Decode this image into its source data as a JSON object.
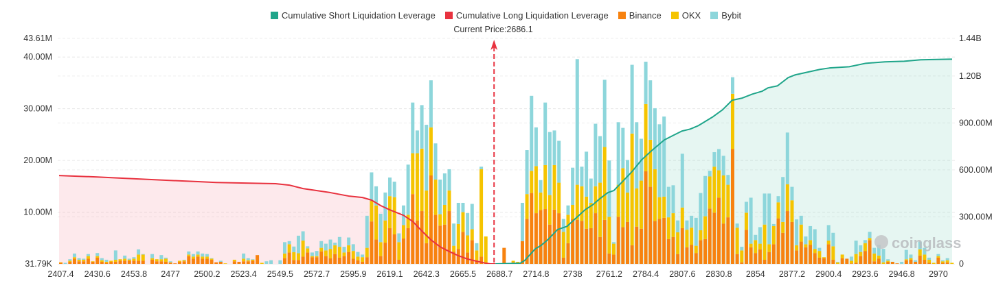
{
  "legend": [
    {
      "label": "Cumulative Short Liquidation Leverage",
      "color": "#1fa58a"
    },
    {
      "label": "Cumulative Long Liquidation Leverage",
      "color": "#e8323f"
    },
    {
      "label": "Binance",
      "color": "#f7820f"
    },
    {
      "label": "OKX",
      "color": "#f5c400"
    },
    {
      "label": "Bybit",
      "color": "#8dd6db"
    }
  ],
  "current_price_label": "Current Price:2686.1",
  "watermark": "coinglass",
  "chart_data": {
    "type": "bar",
    "stacked": true,
    "current_price": 2686.1,
    "x_tick_labels": [
      "2407.4",
      "2430.6",
      "2453.8",
      "2477",
      "2500.2",
      "2523.4",
      "2549.5",
      "2572.7",
      "2595.9",
      "2619.1",
      "2642.3",
      "2665.5",
      "2688.7",
      "2714.8",
      "2738",
      "2761.2",
      "2784.4",
      "2807.6",
      "2830.8",
      "2854",
      "2877.2",
      "2900.4",
      "2923.6",
      "2946.8",
      "2970"
    ],
    "y_left": {
      "unit": "M",
      "range": [
        0,
        43.61
      ],
      "ticks": [
        {
          "label": "43.61M",
          "value": 43.61
        },
        {
          "label": "40.00M",
          "value": 40
        },
        {
          "label": "30.00M",
          "value": 30
        },
        {
          "label": "20.00M",
          "value": 20
        },
        {
          "label": "10.00M",
          "value": 10
        },
        {
          "label": "31.79K",
          "value": 0
        }
      ]
    },
    "y_right": {
      "unit": "M",
      "range": [
        0,
        1440
      ],
      "ticks": [
        {
          "label": "1.44B",
          "value": 1440
        },
        {
          "label": "1.20B",
          "value": 1200
        },
        {
          "label": "900.00M",
          "value": 900
        },
        {
          "label": "600.00M",
          "value": 600
        },
        {
          "label": "300.00M",
          "value": 300
        },
        {
          "label": "0",
          "value": 0
        }
      ]
    },
    "grid": true,
    "legend_position": "top",
    "series": [
      {
        "name": "Binance",
        "color": "#f7820f",
        "values": [
          0.2,
          0,
          0.4,
          1.0,
          0.5,
          0.5,
          1.0,
          0.4,
          1.2,
          0.4,
          0.2,
          0.4,
          0.4,
          0.6,
          0.6,
          0.6,
          0.6,
          0.6,
          0.6,
          0,
          0.8,
          0.5,
          0.5,
          0.4,
          0.2,
          0.1,
          0.4,
          0.5,
          1.5,
          1.0,
          1.4,
          1.0,
          1.0,
          0.8,
          0.3,
          0.4,
          0,
          0,
          0.5,
          0.4,
          0.5,
          0.5,
          0.6,
          1.7,
          0,
          0,
          0,
          0,
          0,
          1.1,
          2.2,
          0.75,
          0.75,
          1.4,
          2.2,
          1.3,
          1.3,
          2.4,
          1.5,
          1.1,
          1.9,
          1.2,
          1.5,
          2.3,
          1.0,
          0.7,
          0.4,
          1.3,
          8.2,
          4.7,
          1.5,
          4.1,
          6.9,
          5.7,
          0.8,
          4.9,
          6.9,
          13.5,
          8.4,
          10.2,
          4.0,
          17.1,
          9.5,
          7.4,
          7.6,
          10.2,
          2.4,
          2.9,
          6.2,
          2.2,
          4.6,
          0.6,
          1.4,
          0,
          0,
          0,
          0,
          3.1,
          0,
          0.3,
          0.2,
          4.4,
          8.7,
          13.7,
          9.8,
          10.4,
          10.6,
          7.6,
          10.5,
          9.8,
          1.2,
          4.0,
          8.7,
          8.5,
          8.3,
          6.8,
          6.9,
          9.8,
          5.2,
          8.5,
          2.0,
          1.8,
          9.1,
          7.1,
          8.1,
          3.6,
          7.2,
          6.8,
          17.9,
          14.9,
          8.3,
          8.7,
          8.9,
          4.8,
          5.2,
          1.9,
          6.9,
          3.2,
          3.7,
          2.1,
          4.6,
          4.8,
          10.7,
          9.9,
          12.8,
          7.8,
          9.0,
          22.2,
          1.9,
          0.3,
          6.6,
          3.2,
          2.1,
          2.8,
          0.8,
          2.3,
          3.8,
          8.8,
          6.0,
          10.2,
          8.1,
          2.6,
          4.3,
          3.2,
          3.7,
          2.1,
          1.2,
          1.1,
          3.8,
          0.8,
          0,
          1.1,
          1.0,
          0.1,
          0.2,
          1.5,
          2.5,
          4.6,
          0.5,
          1.0,
          0,
          0.4,
          0.4,
          0.1,
          0,
          0.7,
          0.8,
          0.4,
          1.6,
          0.8,
          0.2,
          0,
          1.2,
          0.2,
          0.3,
          0
        ]
      },
      {
        "name": "OKX",
        "color": "#f5c400",
        "values": [
          0.1,
          0,
          0.2,
          0.3,
          0.3,
          0.3,
          0.5,
          0.1,
          0.3,
          0.3,
          0.2,
          0.2,
          0.4,
          0.3,
          0.4,
          0.2,
          0.4,
          1.2,
          1.2,
          0,
          0.3,
          0.4,
          0.4,
          0.6,
          0.1,
          0,
          0.2,
          0.2,
          0.3,
          0.4,
          0.4,
          0.4,
          0.4,
          0.2,
          0,
          0,
          0.1,
          0,
          0.3,
          0,
          0.5,
          0.2,
          0.2,
          0,
          0.2,
          0,
          0,
          0,
          0,
          0.9,
          1.6,
          1.5,
          1.3,
          3.1,
          0.8,
          0.2,
          0.2,
          0.7,
          1.1,
          1.8,
          1.7,
          2.1,
          0.7,
          1.3,
          1.5,
          0.7,
          0.9,
          1.8,
          4.0,
          6.6,
          2.7,
          4.3,
          6.2,
          7.2,
          3.4,
          2.6,
          2.6,
          7.9,
          13.0,
          12.1,
          10.2,
          9.3,
          6.8,
          2.2,
          3.8,
          4.0,
          1.1,
          4.8,
          3.8,
          3.3,
          2.1,
          2.0,
          16.9,
          5.3,
          0,
          0,
          0,
          0,
          0,
          0.3,
          0.2,
          0,
          4.8,
          4.3,
          9.1,
          3.4,
          8.5,
          5.7,
          8.6,
          5.9,
          5.0,
          5.5,
          2.7,
          6.8,
          6.7,
          6.2,
          4.9,
          5.2,
          10.5,
          14.1,
          7.1,
          2.1,
          6.2,
          11.4,
          5.7,
          21.6,
          7.4,
          9.3,
          13.0,
          9.1,
          10.0,
          4.2,
          4.1,
          4.2,
          4.6,
          4.2,
          4.0,
          3.4,
          3.3,
          1.4,
          1.9,
          4.4,
          6.2,
          8.9,
          5.3,
          9.3,
          6.3,
          10.7,
          5.1,
          2.3,
          3.3,
          0.7,
          2.5,
          1.1,
          6.8,
          1.5,
          3.5,
          3.1,
          2.1,
          5.2,
          4.2,
          1.0,
          3.3,
          0.6,
          0.9,
          0.8,
          1.3,
          0.2,
          0.7,
          2.6,
          0.3,
          0.7,
          0,
          0.5,
          1.7,
          0.8,
          1.5,
          0.4,
          1.5,
          0.6,
          0.3,
          0.2,
          0,
          0,
          0,
          0.2,
          0.3,
          0,
          1.2,
          1.0,
          0.6,
          0.2,
          0.3,
          0.3,
          0.4,
          0.2
        ]
      },
      {
        "name": "Bybit",
        "color": "#8dd6db",
        "values": [
          0,
          0.2,
          0.3,
          0.7,
          0.3,
          0.2,
          0.4,
          0,
          0.6,
          0.4,
          0.4,
          0,
          1.8,
          0,
          0.6,
          0.2,
          0.3,
          1.0,
          0.1,
          0,
          0.8,
          0,
          0.8,
          0.2,
          0.2,
          0,
          0,
          0.1,
          0.6,
          0.5,
          0.6,
          0.6,
          0.5,
          0.1,
          0,
          0.2,
          0,
          0,
          0,
          0,
          1.0,
          0.4,
          0.1,
          0,
          0,
          0.5,
          0.7,
          0,
          0.7,
          2.2,
          0.6,
          1.1,
          3.4,
          1.8,
          0.4,
          0.7,
          1.0,
          1.3,
          1.3,
          1.8,
          0.5,
          1.9,
          1.1,
          1.5,
          1.3,
          0.9,
          0.5,
          6.2,
          5.5,
          3.7,
          5.5,
          5.4,
          3.6,
          3.0,
          1.7,
          3.8,
          9.7,
          9.8,
          4.4,
          8.4,
          12.7,
          9.1,
          7.0,
          6.7,
          6.1,
          4.1,
          4.3,
          4.1,
          1.8,
          4.3,
          4.9,
          1.4,
          0.5,
          0,
          0,
          0,
          0,
          0,
          0,
          0,
          0,
          7.4,
          8.5,
          14.5,
          7.5,
          2.4,
          12.1,
          12.2,
          6.7,
          8.1,
          2.5,
          1.8,
          7.2,
          24.3,
          3.8,
          8.7,
          4.7,
          12.1,
          9.0,
          13.0,
          10.9,
          0.3,
          12.1,
          7.8,
          6.3,
          13.3,
          12.8,
          8.1,
          8.2,
          11.5,
          11.8,
          14.1,
          15.5,
          5.9,
          5.4,
          2.3,
          10.4,
          1.8,
          2.3,
          5.4,
          7.2,
          7.8,
          1.1,
          2.8,
          4.1,
          3.8,
          1.9,
          3.2,
          0.8,
          0.7,
          2.1,
          8.9,
          1.0,
          3.2,
          6.0,
          9.8,
          0.4,
          1.2,
          8.7,
          10.0,
          2.6,
          5.0,
          1.7,
          1.5,
          2.7,
          3.8,
          0.6,
          0,
          3.0,
          2.6,
          0.1,
          0,
          0,
          0.8,
          2.6,
          1.3,
          0.6,
          1.2,
          1.1,
          2.1,
          2.6,
          0.3,
          0,
          0,
          0.4,
          1.8,
          0.7,
          0.3,
          1.5,
          1.3,
          0.4,
          0,
          0.4,
          0.2,
          0.4,
          0
        ]
      }
    ],
    "lines": [
      {
        "name": "Cumulative Long Liquidation Leverage",
        "axis": "right",
        "color": "#e8323f",
        "points": [
          [
            2407.4,
            564
          ],
          [
            2430.6,
            555
          ],
          [
            2456.7,
            542
          ],
          [
            2494.4,
            525
          ],
          [
            2506.0,
            520
          ],
          [
            2546.2,
            512
          ],
          [
            2555.3,
            503
          ],
          [
            2564.0,
            481
          ],
          [
            2581.4,
            455
          ],
          [
            2593.0,
            433
          ],
          [
            2601.7,
            424
          ],
          [
            2607.5,
            407
          ],
          [
            2613.3,
            372
          ],
          [
            2619.1,
            345
          ],
          [
            2627.8,
            310
          ],
          [
            2633.6,
            271
          ],
          [
            2639.4,
            210
          ],
          [
            2645.2,
            153
          ],
          [
            2651.0,
            109
          ],
          [
            2656.8,
            79
          ],
          [
            2662.6,
            52
          ],
          [
            2668.4,
            31
          ],
          [
            2674.2,
            17
          ],
          [
            2680.0,
            4
          ],
          [
            2682.9,
            0
          ],
          [
            2686.1,
            0
          ]
        ]
      },
      {
        "name": "Cumulative Short Liquidation Leverage",
        "axis": "right",
        "color": "#1fa58a",
        "points": [
          [
            2686.1,
            0
          ],
          [
            2703.4,
            4
          ],
          [
            2706.7,
            22
          ],
          [
            2714.2,
            96
          ],
          [
            2718.0,
            118
          ],
          [
            2722.1,
            153
          ],
          [
            2728.4,
            219
          ],
          [
            2734.5,
            240
          ],
          [
            2740.6,
            297
          ],
          [
            2745.8,
            345
          ],
          [
            2751.1,
            380
          ],
          [
            2755.1,
            415
          ],
          [
            2760.3,
            455
          ],
          [
            2764.1,
            468
          ],
          [
            2769.6,
            525
          ],
          [
            2775.7,
            590
          ],
          [
            2781.8,
            665
          ],
          [
            2787.9,
            721
          ],
          [
            2796.1,
            791
          ],
          [
            2801.3,
            818
          ],
          [
            2807.3,
            848
          ],
          [
            2812.6,
            861
          ],
          [
            2817.8,
            883
          ],
          [
            2827.1,
            940
          ],
          [
            2833.1,
            984
          ],
          [
            2837.5,
            1028
          ],
          [
            2839.2,
            1045
          ],
          [
            2845.3,
            1058
          ],
          [
            2852.0,
            1084
          ],
          [
            2858.1,
            1102
          ],
          [
            2861.9,
            1124
          ],
          [
            2868.0,
            1137
          ],
          [
            2874.7,
            1189
          ],
          [
            2879.2,
            1207
          ],
          [
            2886.8,
            1224
          ],
          [
            2894.9,
            1242
          ],
          [
            2901.0,
            1251
          ],
          [
            2913.5,
            1259
          ],
          [
            2924.0,
            1281
          ],
          [
            2936.1,
            1290
          ],
          [
            2948.3,
            1294
          ],
          [
            2958.8,
            1303
          ],
          [
            2977.1,
            1307
          ],
          [
            2979.0,
            1307
          ]
        ]
      }
    ]
  }
}
